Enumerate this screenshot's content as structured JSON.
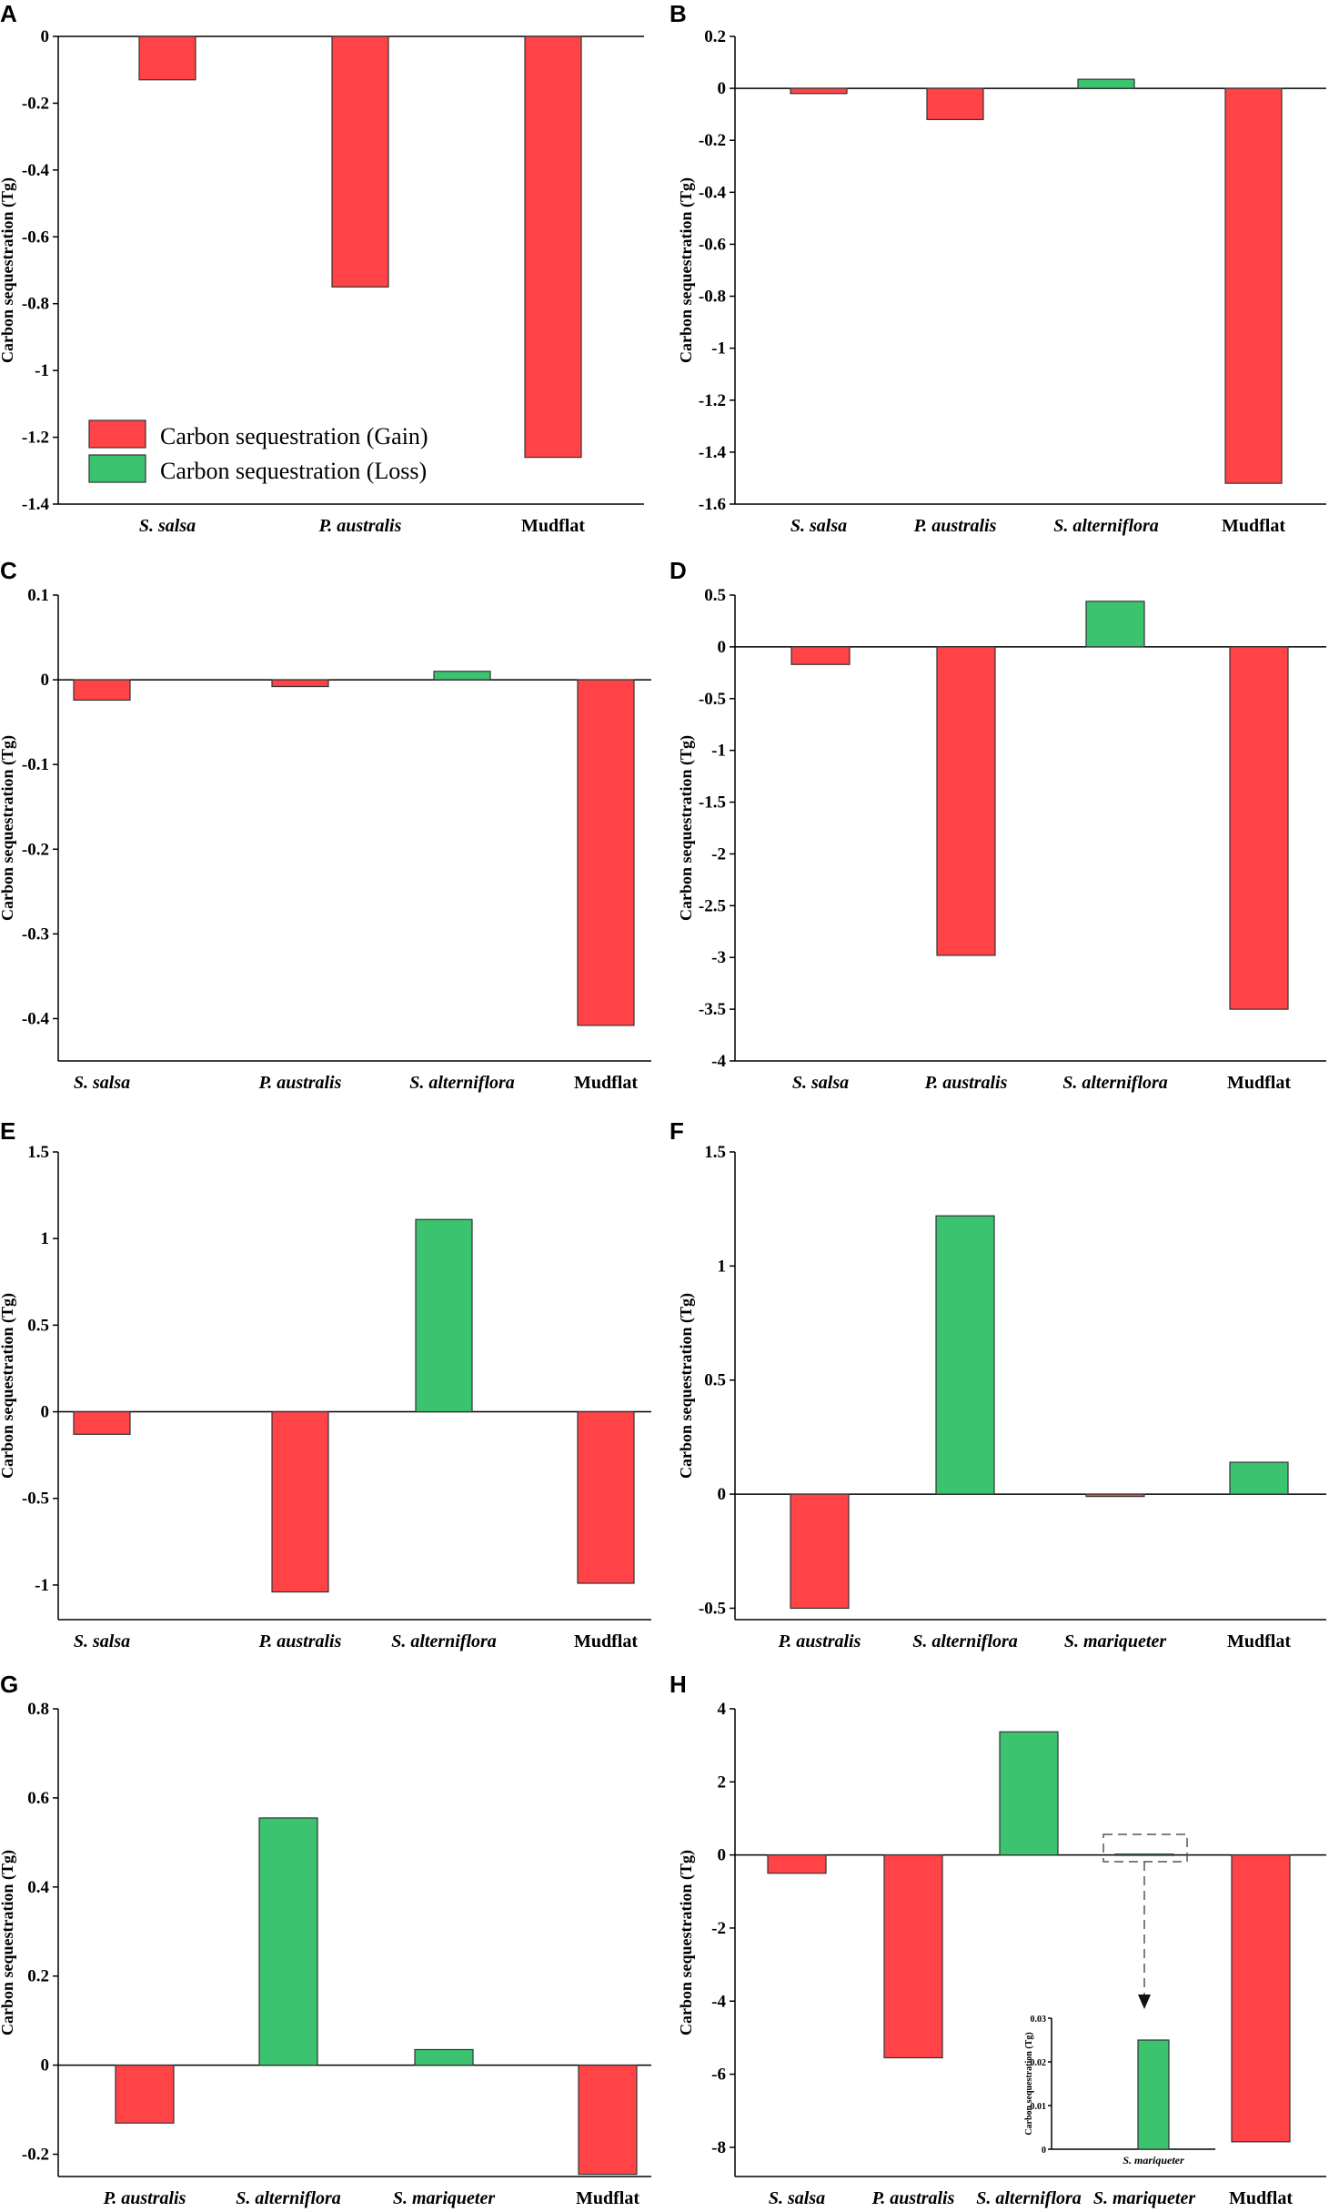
{
  "colors": {
    "gain": "#FF4346",
    "loss": "#3CC370"
  },
  "legend": {
    "gain_label": "Carbon sequestration (Gain)",
    "loss_label": "Carbon sequestration (Loss)"
  },
  "chart_data": [
    {
      "type": "bar",
      "panel": "A",
      "ylabel": "Carbon sequestration (Tg)",
      "categories": [
        "S. salsa",
        "P. australis",
        "Mudflat"
      ],
      "values": [
        -0.13,
        -0.75,
        -1.26
      ],
      "ylim": [
        -1.4,
        0
      ],
      "yticks": [
        0,
        -0.2,
        -0.4,
        -0.6,
        -0.8,
        -1,
        -1.2,
        -1.4
      ],
      "ytick_labels": [
        "0",
        "-0.2",
        "-0.4",
        "-0.6",
        "-0.8",
        "-1",
        "-1.2",
        "-1.4"
      ]
    },
    {
      "type": "bar",
      "panel": "B",
      "ylabel": "Carbon sequestration (Tg)",
      "categories": [
        "S. salsa",
        "P. australis",
        "S. alterniflora",
        "Mudflat"
      ],
      "values": [
        -0.02,
        -0.12,
        0.035,
        -1.52
      ],
      "ylim": [
        -1.6,
        0.2
      ],
      "yticks": [
        0.2,
        0,
        -0.2,
        -0.4,
        -0.6,
        -0.8,
        -1,
        -1.2,
        -1.4,
        -1.6
      ],
      "ytick_labels": [
        "0.2",
        "0",
        "-0.2",
        "-0.4",
        "-0.6",
        "-0.8",
        "-1",
        "-1.2",
        "-1.4",
        "-1.6"
      ]
    },
    {
      "type": "bar",
      "panel": "C",
      "ylabel": "Carbon sequestration (Tg)",
      "categories": [
        "S. salsa",
        "P. australis",
        "S. alterniflora",
        "Mudflat"
      ],
      "values": [
        -0.024,
        -0.008,
        0.01,
        -0.408
      ],
      "ylim": [
        -0.45,
        0.1
      ],
      "yticks": [
        0.1,
        0,
        -0.1,
        -0.2,
        -0.3,
        -0.4
      ],
      "ytick_labels": [
        "0.1",
        "0",
        "-0.1",
        "-0.2",
        "-0.3",
        "-0.4"
      ]
    },
    {
      "type": "bar",
      "panel": "D",
      "ylabel": "Carbon sequestration (Tg)",
      "categories": [
        "S. salsa",
        "P. australis",
        "S. alterniflora",
        "Mudflat"
      ],
      "values": [
        -0.17,
        -2.98,
        0.44,
        -3.5
      ],
      "ylim": [
        -4,
        0.5
      ],
      "yticks": [
        0.5,
        0,
        -0.5,
        -1,
        -1.5,
        -2,
        -2.5,
        -3,
        -3.5,
        -4
      ],
      "ytick_labels": [
        "0.5",
        "0",
        "-0.5",
        "-1",
        "-1.5",
        "-2",
        "-2.5",
        "-3",
        "-3.5",
        "-4"
      ]
    },
    {
      "type": "bar",
      "panel": "E",
      "ylabel": "Carbon sequestration (Tg)",
      "categories": [
        "S. salsa",
        "P. australis",
        "S. alterniflora",
        "Mudflat"
      ],
      "values": [
        -0.13,
        -1.04,
        1.11,
        -0.99
      ],
      "ylim": [
        -1.2,
        1.5
      ],
      "yticks": [
        1.5,
        1,
        0.5,
        0,
        -0.5,
        -1
      ],
      "ytick_labels": [
        "1.5",
        "1",
        "0.5",
        "0",
        "-0.5",
        "-1"
      ]
    },
    {
      "type": "bar",
      "panel": "F",
      "ylabel": "Carbon sequestration (Tg)",
      "categories": [
        "P. australis",
        "S. alterniflora",
        "S. mariqueter",
        "Mudflat"
      ],
      "values": [
        -0.5,
        1.22,
        -0.01,
        0.14
      ],
      "ylim": [
        -0.55,
        1.5
      ],
      "yticks": [
        1.5,
        1,
        0.5,
        0,
        -0.5
      ],
      "ytick_labels": [
        "1.5",
        "1",
        "0.5",
        "0",
        "-0.5"
      ]
    },
    {
      "type": "bar",
      "panel": "G",
      "ylabel": "Carbon sequestration (Tg)",
      "categories": [
        "P. australis",
        "S. alterniflora",
        "S. mariqueter",
        "Mudflat"
      ],
      "values": [
        -0.13,
        0.555,
        0.035,
        -0.245
      ],
      "ylim": [
        -0.25,
        0.8
      ],
      "yticks": [
        0.8,
        0.6,
        0.4,
        0.2,
        0,
        -0.2
      ],
      "ytick_labels": [
        "0.8",
        "0.6",
        "0.4",
        "0.2",
        "0",
        "-0.2"
      ]
    },
    {
      "type": "bar",
      "panel": "H",
      "ylabel": "Carbon sequestration (Tg)",
      "categories": [
        "S. salsa",
        "P. australis",
        "S. alterniflora",
        "S. mariqueter",
        "Mudflat"
      ],
      "values": [
        -0.5,
        -5.55,
        3.37,
        0.025,
        -7.85
      ],
      "ylim": [
        -8.8,
        4
      ],
      "yticks": [
        4,
        2,
        0,
        -2,
        -4,
        -6,
        -8
      ],
      "ytick_labels": [
        "4",
        "2",
        "0",
        "-2",
        "-4",
        "-6",
        "-8"
      ],
      "inset": {
        "categories": [
          "S. mariqueter"
        ],
        "values": [
          0.025
        ],
        "ylim": [
          0,
          0.03
        ],
        "yticks": [
          0.03,
          0.02,
          0.01,
          0
        ],
        "ytick_labels": [
          "0.03",
          "0.02",
          "0.01",
          "0"
        ],
        "ylabel": "Carbon sequestration (Tg)"
      }
    }
  ]
}
